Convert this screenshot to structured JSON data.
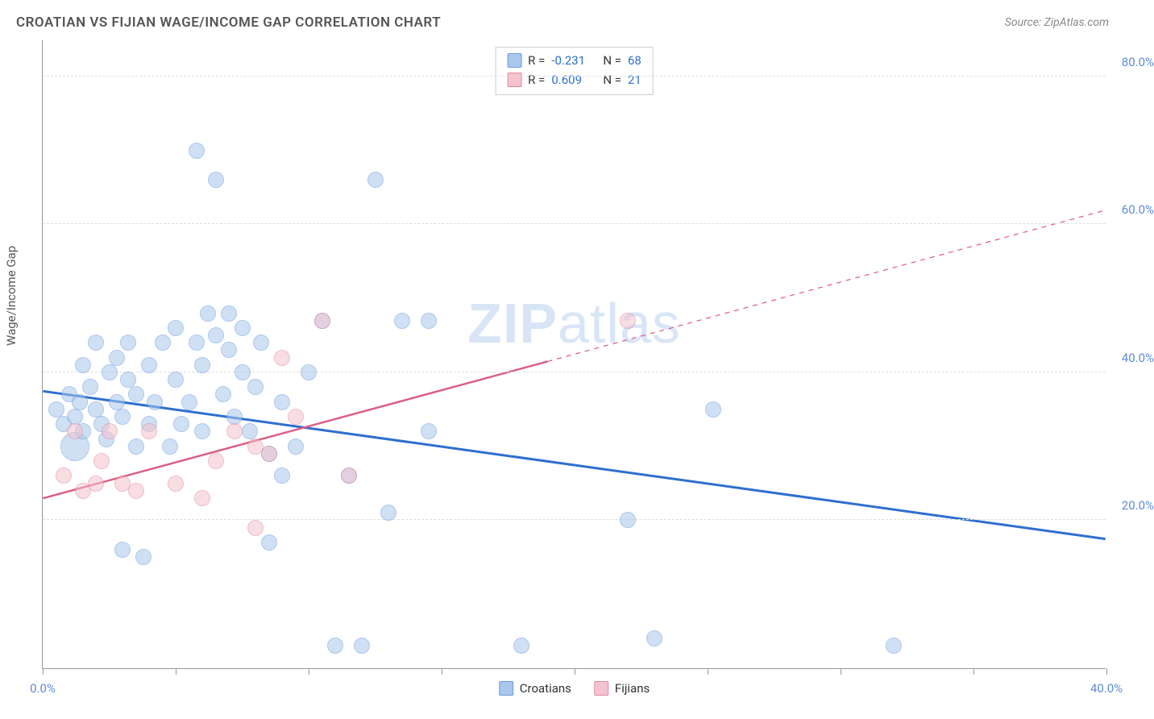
{
  "title": "CROATIAN VS FIJIAN WAGE/INCOME GAP CORRELATION CHART",
  "source_label": "Source: ZipAtlas.com",
  "watermark_prefix": "ZIP",
  "watermark_suffix": "atlas",
  "ylabel": "Wage/Income Gap",
  "chart": {
    "type": "scatter",
    "xlim": [
      0,
      40
    ],
    "ylim": [
      0,
      85
    ],
    "x_ticks": [
      0,
      5,
      10,
      15,
      20,
      25,
      30,
      35,
      40
    ],
    "x_tick_labels": {
      "0": "0.0%",
      "40": "40.0%"
    },
    "y_ticks": [
      20,
      40,
      60,
      80
    ],
    "y_tick_labels": {
      "20": "20.0%",
      "40": "40.0%",
      "60": "60.0%",
      "80": "80.0%"
    },
    "y_tick_color": "#5b8dd6",
    "x_tick_color": "#5b8dd6",
    "background_color": "#ffffff",
    "grid_color": "#dddddd",
    "axis_color": "#999999",
    "series": [
      {
        "name": "Croatians",
        "fill_color": "#a9c7ec",
        "stroke_color": "#6b9bdc",
        "fill_opacity": 0.55,
        "marker_radius": 10,
        "line_color": "#2e6fd0",
        "line_width": 3,
        "trend": {
          "x1": 0,
          "y1": 37.5,
          "x2": 40,
          "y2": 17.5,
          "dash_from_x": null
        },
        "R": "-0.231",
        "N": "68",
        "points": [
          {
            "x": 0.5,
            "y": 35,
            "r": 10
          },
          {
            "x": 0.8,
            "y": 33,
            "r": 10
          },
          {
            "x": 1.0,
            "y": 37,
            "r": 10
          },
          {
            "x": 1.2,
            "y": 34,
            "r": 10
          },
          {
            "x": 1.2,
            "y": 30,
            "r": 18
          },
          {
            "x": 1.4,
            "y": 36,
            "r": 10
          },
          {
            "x": 1.5,
            "y": 41,
            "r": 10
          },
          {
            "x": 1.5,
            "y": 32,
            "r": 10
          },
          {
            "x": 1.8,
            "y": 38,
            "r": 10
          },
          {
            "x": 2.0,
            "y": 35,
            "r": 10
          },
          {
            "x": 2.0,
            "y": 44,
            "r": 10
          },
          {
            "x": 2.2,
            "y": 33,
            "r": 10
          },
          {
            "x": 2.4,
            "y": 31,
            "r": 10
          },
          {
            "x": 2.5,
            "y": 40,
            "r": 10
          },
          {
            "x": 2.8,
            "y": 36,
            "r": 10
          },
          {
            "x": 2.8,
            "y": 42,
            "r": 10
          },
          {
            "x": 3.0,
            "y": 34,
            "r": 10
          },
          {
            "x": 3.0,
            "y": 16,
            "r": 10
          },
          {
            "x": 3.2,
            "y": 39,
            "r": 10
          },
          {
            "x": 3.2,
            "y": 44,
            "r": 10
          },
          {
            "x": 3.5,
            "y": 30,
            "r": 10
          },
          {
            "x": 3.5,
            "y": 37,
            "r": 10
          },
          {
            "x": 3.8,
            "y": 15,
            "r": 10
          },
          {
            "x": 4.0,
            "y": 33,
            "r": 10
          },
          {
            "x": 4.0,
            "y": 41,
            "r": 10
          },
          {
            "x": 4.2,
            "y": 36,
            "r": 10
          },
          {
            "x": 4.5,
            "y": 44,
            "r": 10
          },
          {
            "x": 4.8,
            "y": 30,
            "r": 10
          },
          {
            "x": 5.0,
            "y": 39,
            "r": 10
          },
          {
            "x": 5.0,
            "y": 46,
            "r": 10
          },
          {
            "x": 5.2,
            "y": 33,
            "r": 10
          },
          {
            "x": 5.5,
            "y": 36,
            "r": 10
          },
          {
            "x": 5.8,
            "y": 44,
            "r": 10
          },
          {
            "x": 5.8,
            "y": 70,
            "r": 10
          },
          {
            "x": 6.0,
            "y": 32,
            "r": 10
          },
          {
            "x": 6.0,
            "y": 41,
            "r": 10
          },
          {
            "x": 6.2,
            "y": 48,
            "r": 10
          },
          {
            "x": 6.5,
            "y": 45,
            "r": 10
          },
          {
            "x": 6.5,
            "y": 66,
            "r": 10
          },
          {
            "x": 6.8,
            "y": 37,
            "r": 10
          },
          {
            "x": 7.0,
            "y": 43,
            "r": 10
          },
          {
            "x": 7.0,
            "y": 48,
            "r": 10
          },
          {
            "x": 7.2,
            "y": 34,
            "r": 10
          },
          {
            "x": 7.5,
            "y": 40,
            "r": 10
          },
          {
            "x": 7.5,
            "y": 46,
            "r": 10
          },
          {
            "x": 7.8,
            "y": 32,
            "r": 10
          },
          {
            "x": 8.0,
            "y": 38,
            "r": 10
          },
          {
            "x": 8.2,
            "y": 44,
            "r": 10
          },
          {
            "x": 8.5,
            "y": 17,
            "r": 10
          },
          {
            "x": 8.5,
            "y": 29,
            "r": 10
          },
          {
            "x": 9.0,
            "y": 36,
            "r": 10
          },
          {
            "x": 9.0,
            "y": 26,
            "r": 10
          },
          {
            "x": 9.5,
            "y": 30,
            "r": 10
          },
          {
            "x": 10.0,
            "y": 40,
            "r": 10
          },
          {
            "x": 10.5,
            "y": 47,
            "r": 10
          },
          {
            "x": 11.0,
            "y": 3,
            "r": 10
          },
          {
            "x": 11.5,
            "y": 26,
            "r": 10
          },
          {
            "x": 12.0,
            "y": 3,
            "r": 10
          },
          {
            "x": 12.5,
            "y": 66,
            "r": 10
          },
          {
            "x": 13.0,
            "y": 21,
            "r": 10
          },
          {
            "x": 13.5,
            "y": 47,
            "r": 10
          },
          {
            "x": 14.5,
            "y": 32,
            "r": 10
          },
          {
            "x": 14.5,
            "y": 47,
            "r": 10
          },
          {
            "x": 18.0,
            "y": 3,
            "r": 10
          },
          {
            "x": 22.0,
            "y": 20,
            "r": 10
          },
          {
            "x": 23.0,
            "y": 4,
            "r": 10
          },
          {
            "x": 25.2,
            "y": 35,
            "r": 10
          },
          {
            "x": 32.0,
            "y": 3,
            "r": 10
          }
        ]
      },
      {
        "name": "Fijians",
        "fill_color": "#f4c3cd",
        "stroke_color": "#e38aa0",
        "fill_opacity": 0.55,
        "marker_radius": 10,
        "line_color": "#dc5e84",
        "line_width": 2.5,
        "trend": {
          "x1": 0,
          "y1": 23,
          "x2": 40,
          "y2": 62,
          "dash_from_x": 19
        },
        "R": "0.609",
        "N": "21",
        "points": [
          {
            "x": 0.8,
            "y": 26,
            "r": 10
          },
          {
            "x": 1.2,
            "y": 32,
            "r": 10
          },
          {
            "x": 1.5,
            "y": 24,
            "r": 10
          },
          {
            "x": 2.0,
            "y": 25,
            "r": 10
          },
          {
            "x": 2.2,
            "y": 28,
            "r": 10
          },
          {
            "x": 2.5,
            "y": 32,
            "r": 10
          },
          {
            "x": 3.0,
            "y": 25,
            "r": 10
          },
          {
            "x": 3.5,
            "y": 24,
            "r": 10
          },
          {
            "x": 4.0,
            "y": 32,
            "r": 10
          },
          {
            "x": 5.0,
            "y": 25,
            "r": 10
          },
          {
            "x": 6.0,
            "y": 23,
            "r": 10
          },
          {
            "x": 6.5,
            "y": 28,
            "r": 10
          },
          {
            "x": 7.2,
            "y": 32,
            "r": 10
          },
          {
            "x": 8.0,
            "y": 19,
            "r": 10
          },
          {
            "x": 8.0,
            "y": 30,
            "r": 10
          },
          {
            "x": 8.5,
            "y": 29,
            "r": 10
          },
          {
            "x": 9.0,
            "y": 42,
            "r": 10
          },
          {
            "x": 9.5,
            "y": 34,
            "r": 10
          },
          {
            "x": 10.5,
            "y": 47,
            "r": 10
          },
          {
            "x": 11.5,
            "y": 26,
            "r": 10
          },
          {
            "x": 22.0,
            "y": 47,
            "r": 10
          }
        ]
      }
    ],
    "legend_top": {
      "rows": [
        {
          "swatch_fill": "#a9c7ec",
          "swatch_stroke": "#6b9bdc",
          "r_label": "R =",
          "r_val": "-0.231",
          "n_label": "N =",
          "n_val": "68"
        },
        {
          "swatch_fill": "#f4c3cd",
          "swatch_stroke": "#e38aa0",
          "r_label": "R =",
          "r_val": "0.609",
          "n_label": "N =",
          "n_val": "21"
        }
      ],
      "label_color": "#333333",
      "value_color": "#2e6fd0"
    },
    "legend_bottom": [
      {
        "label": "Croatians",
        "fill": "#a9c7ec",
        "stroke": "#6b9bdc"
      },
      {
        "label": "Fijians",
        "fill": "#f4c3cd",
        "stroke": "#e38aa0"
      }
    ]
  }
}
